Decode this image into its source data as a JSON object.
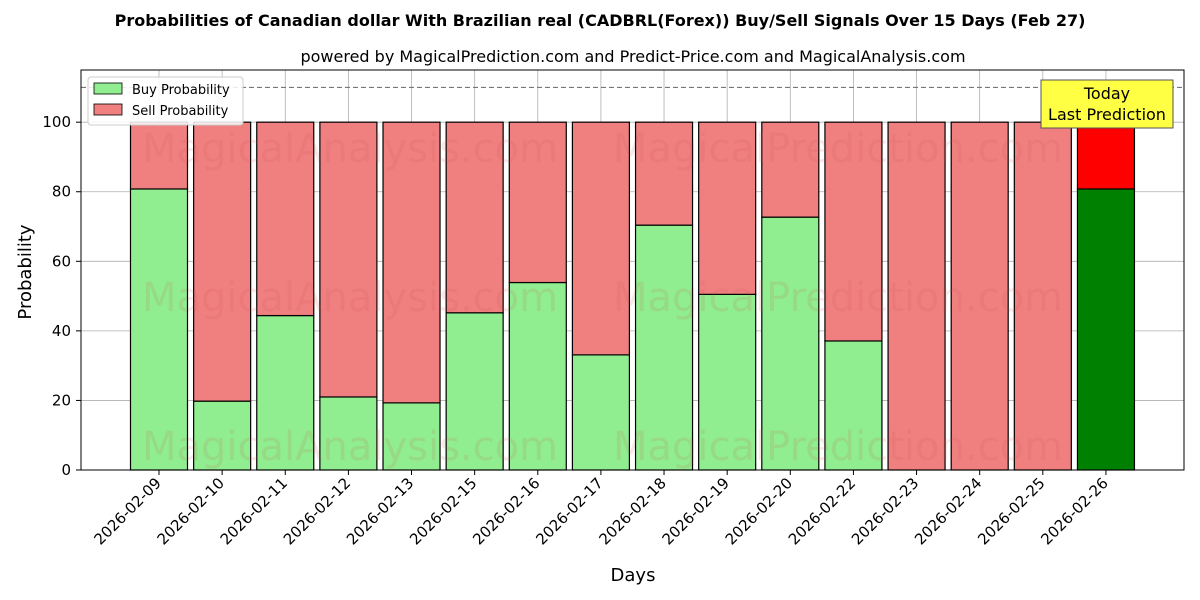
{
  "chart_data": {
    "type": "bar",
    "stacked": true,
    "title": "Probabilities of Canadian dollar With Brazilian real (CADBRL(Forex)) Buy/Sell Signals Over 15 Days (Feb 27)",
    "subtitle": "powered by MagicalPrediction.com and Predict-Price.com and MagicalAnalysis.com",
    "xlabel": "Days",
    "ylabel": "Probability",
    "ylim": [
      0,
      115
    ],
    "yticks": [
      0,
      20,
      40,
      60,
      80,
      100
    ],
    "reference_line": 110,
    "grid": true,
    "legend_position": "top-left",
    "categories": [
      "2026-02-09",
      "2026-02-10",
      "2026-02-11",
      "2026-02-12",
      "2026-02-13",
      "2026-02-15",
      "2026-02-16",
      "2026-02-17",
      "2026-02-18",
      "2026-02-19",
      "2026-02-20",
      "2026-02-22",
      "2026-02-23",
      "2026-02-24",
      "2026-02-25",
      "2026-02-26"
    ],
    "series": [
      {
        "name": "Buy Probability",
        "color": "#90ee90",
        "highlight_color": "#008000",
        "values": [
          80.8,
          19.8,
          44.4,
          21.0,
          19.3,
          45.2,
          53.9,
          33.1,
          70.4,
          50.5,
          72.7,
          37.1,
          0,
          0,
          0,
          80.8
        ]
      },
      {
        "name": "Sell Probability",
        "color": "#f08080",
        "highlight_color": "#ff0000",
        "values": [
          19.2,
          80.2,
          55.6,
          79.0,
          80.7,
          54.8,
          46.1,
          66.9,
          29.6,
          49.5,
          27.3,
          62.9,
          100,
          100,
          100,
          19.2
        ]
      }
    ],
    "annotation": {
      "line1": "Today",
      "line2": "Last Prediction"
    },
    "watermarks": [
      "MagicalAnalysis.com",
      "MagicalPrediction.com"
    ]
  }
}
